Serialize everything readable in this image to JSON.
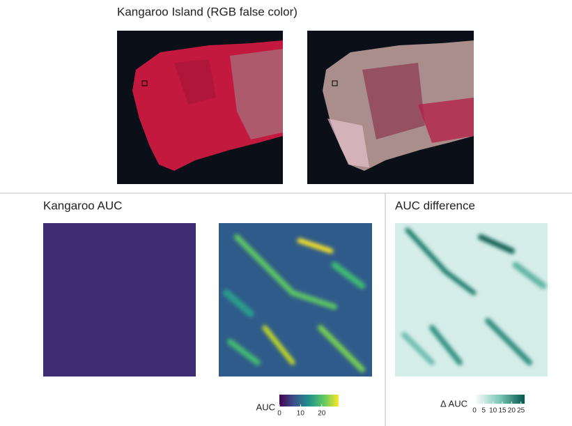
{
  "top": {
    "title": "Kangaroo Island (RGB false color)"
  },
  "auc": {
    "title": "Kangaroo AUC",
    "colorbar": {
      "label": "AUC",
      "lim": [
        0,
        28
      ],
      "ticks": [
        0,
        10,
        20
      ]
    }
  },
  "diff": {
    "title": "AUC difference",
    "colorbar": {
      "label": "Δ AUC",
      "lim": [
        0,
        27
      ],
      "ticks": [
        0,
        5,
        10,
        15,
        20,
        25
      ]
    }
  }
}
